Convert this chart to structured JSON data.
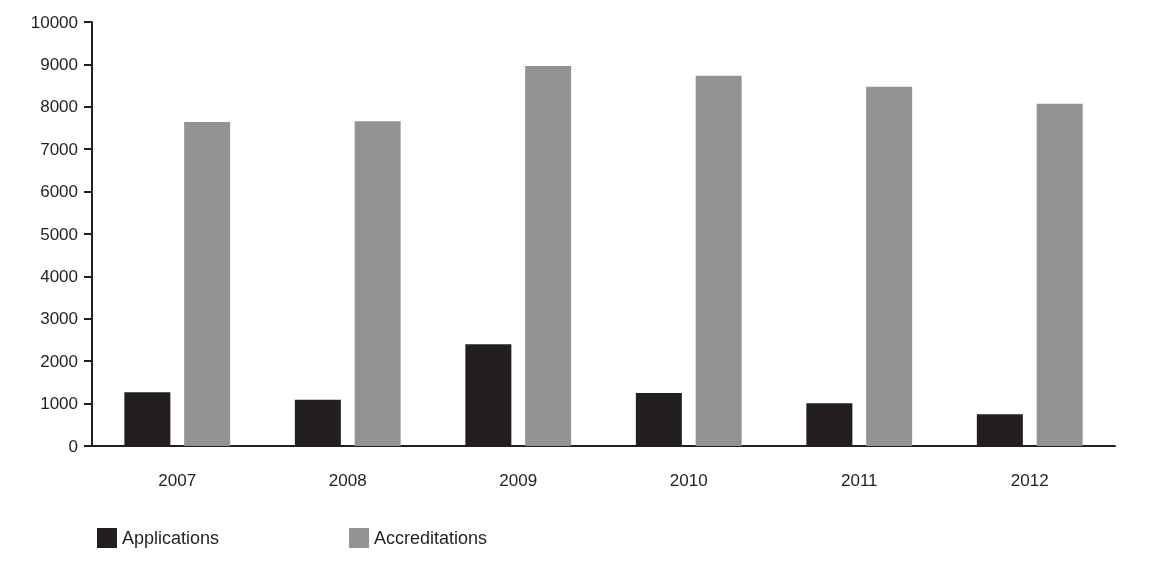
{
  "chart_data": {
    "type": "bar",
    "categories": [
      "2007",
      "2008",
      "2009",
      "2010",
      "2011",
      "2012"
    ],
    "series": [
      {
        "name": "Applications",
        "color": "#231f20",
        "values": [
          1270,
          1090,
          2400,
          1250,
          1010,
          750
        ]
      },
      {
        "name": "Accreditations",
        "color": "#939393",
        "values": [
          7640,
          7660,
          8960,
          8730,
          8470,
          8070
        ]
      }
    ],
    "ylim": [
      0,
      10000
    ],
    "yticks": [
      0,
      1000,
      2000,
      3000,
      4000,
      5000,
      6000,
      7000,
      8000,
      9000,
      10000
    ],
    "grid": false,
    "legend": "bottom left"
  }
}
